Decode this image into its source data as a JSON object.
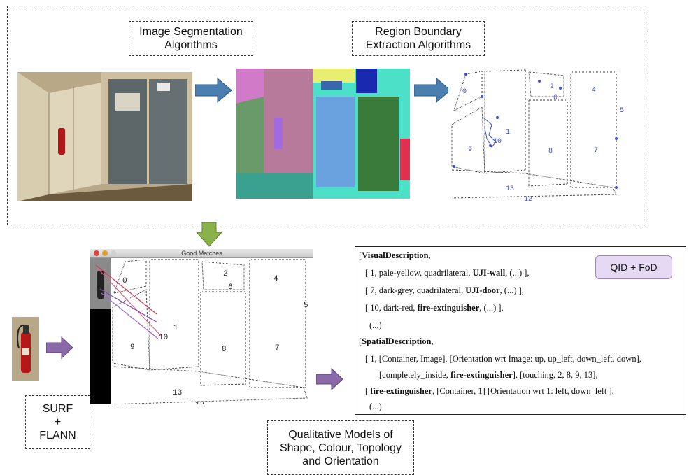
{
  "labels": {
    "segmentation": "Image Segmentation\nAlgorithms",
    "boundary": "Region Boundary\nExtraction Algorithms",
    "surf": "SURF\n+\nFLANN",
    "qualitative": "Qualitative Models of\nShape, Colour, Topology\nand Orientation",
    "qid": "QID + FoD",
    "window_title": "Good Matches"
  },
  "region_numbers_top": [
    "0",
    "2",
    "4",
    "6",
    "1",
    "10",
    "9",
    "8",
    "7",
    "5",
    "13",
    "12"
  ],
  "region_numbers_bottom": [
    "0",
    "2",
    "4",
    "6",
    "1",
    "10",
    "9",
    "8",
    "7",
    "5",
    "13",
    "12"
  ],
  "description": {
    "visual_header": "VisualDescription",
    "visual_rows": [
      {
        "pre": "[ 1, pale-yellow, quadrilateral, ",
        "bold": "UJI-wall",
        "post": ", (...) ],"
      },
      {
        "pre": "[ 7, dark-grey, quadrilateral, ",
        "bold": "UJI-door",
        "post": ", (...) ],"
      },
      {
        "pre": "[ 10, dark-red, ",
        "bold": "fire-extinguisher",
        "post": ", (...) ],"
      },
      {
        "pre": "(...)",
        "bold": "",
        "post": ""
      }
    ],
    "spatial_header": "SpatialDescription",
    "spatial_rows": [
      {
        "pre": "[ 1, [Container, Image], [Orientation wrt Image: up, up_left, down_left, down],",
        "bold": "",
        "post": ""
      },
      {
        "pre": "[completely_inside, ",
        "bold": "fire-extinguisher",
        "post": "], [touching, 2, 8, 9, 13],"
      },
      {
        "pre": "[ ",
        "bold": "fire-extinguisher",
        "post": ", [Container, 1] [Orientation wrt 1: left, down_left ],"
      },
      {
        "pre": "(...)",
        "bold": "",
        "post": ""
      }
    ]
  },
  "colors": {
    "arrow_blue": "#4a7fb0",
    "arrow_green": "#8ab24a",
    "arrow_purple": "#8a6aa8",
    "boundary_blue": "#3a4fd0"
  }
}
